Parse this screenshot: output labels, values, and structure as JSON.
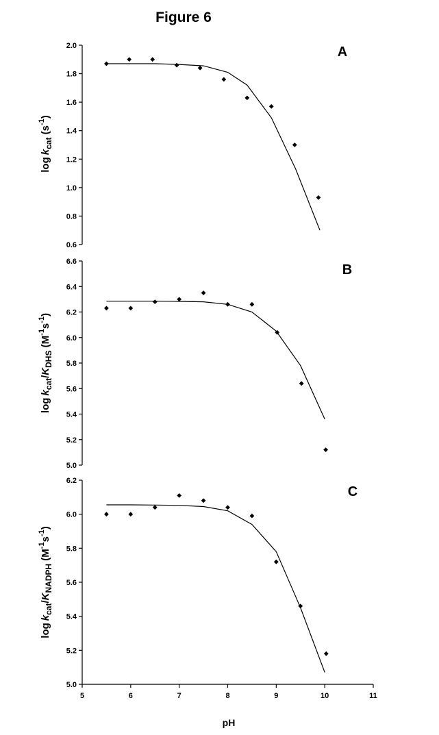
{
  "figure": {
    "title": "Figure 6"
  },
  "chart_data": [
    {
      "type": "scatter",
      "panel": "A",
      "ylabel": "log kcat (s-1)",
      "ylabel_parts": {
        "main": "log",
        "italic": "k",
        "sub": "cat",
        "unit_open": " (s",
        "sup": "-1",
        "unit_close": ")"
      },
      "ylim": [
        0.6,
        2.0
      ],
      "yticks": [
        "0.6",
        "0.8",
        "1.0",
        "1.2",
        "1.4",
        "1.6",
        "1.8",
        "2.0"
      ],
      "xlim": [
        5,
        11
      ],
      "series": [
        {
          "kind": "points",
          "x": [
            5.5,
            5.97,
            6.45,
            6.95,
            7.43,
            7.92,
            8.4,
            8.9,
            9.38,
            9.87
          ],
          "y": [
            1.87,
            1.9,
            1.9,
            1.86,
            1.84,
            1.76,
            1.63,
            1.57,
            1.3,
            0.93
          ]
        },
        {
          "kind": "fit",
          "x": [
            5.5,
            6.0,
            6.5,
            7.0,
            7.5,
            8.0,
            8.4,
            8.9,
            9.4,
            9.9
          ],
          "y": [
            1.87,
            1.87,
            1.87,
            1.865,
            1.855,
            1.81,
            1.72,
            1.49,
            1.13,
            0.7
          ]
        }
      ]
    },
    {
      "type": "scatter",
      "panel": "B",
      "ylabel": "log kcat/KDHS (M-1s-1)",
      "ylabel_parts": {
        "main": "log",
        "italic": "k",
        "sub": "cat",
        "slash": "/",
        "italic2": "K",
        "sub2": "DHS",
        "unit": " (M-1s-1)"
      },
      "ylim": [
        5.0,
        6.6
      ],
      "yticks": [
        "5.0",
        "5.2",
        "5.4",
        "5.6",
        "5.8",
        "6.0",
        "6.2",
        "6.4",
        "6.6"
      ],
      "xlim": [
        5,
        11
      ],
      "series": [
        {
          "kind": "points",
          "x": [
            5.5,
            6.0,
            6.5,
            7.0,
            7.5,
            8.0,
            8.5,
            9.02,
            9.52,
            10.02
          ],
          "y": [
            6.23,
            6.23,
            6.28,
            6.3,
            6.35,
            6.26,
            6.26,
            6.04,
            5.64,
            5.12
          ]
        },
        {
          "kind": "fit",
          "x": [
            5.5,
            6.0,
            6.5,
            7.0,
            7.5,
            8.0,
            8.5,
            9.0,
            9.5,
            10.0
          ],
          "y": [
            6.285,
            6.285,
            6.285,
            6.283,
            6.28,
            6.26,
            6.2,
            6.05,
            5.78,
            5.36
          ]
        }
      ]
    },
    {
      "type": "scatter",
      "panel": "C",
      "ylabel": "log kcat/KNADPH (M-1s-1)",
      "ylabel_parts": {
        "main": "log",
        "italic": "k",
        "sub": "cat",
        "slash": "/",
        "italic2": "K",
        "sub2": "NADPH",
        "unit": " (M-1s-1)"
      },
      "ylim": [
        5.0,
        6.2
      ],
      "yticks": [
        "5.0",
        "5.2",
        "5.4",
        "5.6",
        "5.8",
        "6.0",
        "6.2"
      ],
      "xlim": [
        5,
        11
      ],
      "xticks": [
        "5",
        "6",
        "7",
        "8",
        "9",
        "10",
        "11"
      ],
      "xlabel": "pH",
      "series": [
        {
          "kind": "points",
          "x": [
            5.5,
            6.0,
            6.5,
            7.0,
            7.5,
            8.0,
            8.5,
            9.0,
            9.5,
            10.03
          ],
          "y": [
            6.0,
            6.0,
            6.04,
            6.11,
            6.08,
            6.04,
            5.99,
            5.72,
            5.46,
            5.18
          ]
        },
        {
          "kind": "fit",
          "x": [
            5.5,
            6.0,
            6.5,
            7.0,
            7.5,
            8.0,
            8.5,
            9.0,
            9.5,
            10.0
          ],
          "y": [
            6.055,
            6.055,
            6.054,
            6.052,
            6.045,
            6.02,
            5.94,
            5.78,
            5.45,
            5.07
          ]
        }
      ]
    }
  ]
}
